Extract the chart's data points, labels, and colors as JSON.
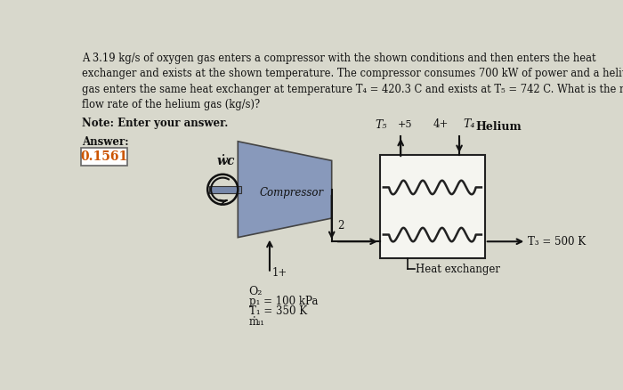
{
  "background_color": "#d8d8cc",
  "title_text": "A 3.19 kg/s of oxygen gas enters a compressor with the shown conditions and then enters the heat\nexchanger and exists at the shown temperature. The compressor consumes 700 kW of power and a helium\ngas enters the same heat exchanger at temperature T₄ = 420.3 C and exists at T₅ = 742 C. What is the mass\nflow rate of the helium gas (kg/s)?",
  "note_text": "Note: Enter your answer.",
  "answer_label": "Answer:",
  "answer_value": "0.1561",
  "helium_label": "Helium",
  "wc_label": "ẇc",
  "compressor_label": "Compressor",
  "o2_label": "O₂",
  "p1_label": "p₁ = 100 kPa",
  "t1_label": "T₁ = 350 K",
  "mdot1_label": "ṁᵢ₁",
  "t3_label": "T₃ = 500 K",
  "t5_label": "T₅",
  "t4_label": "T₄",
  "heat_exchanger_label": "Heat exchanger",
  "node1_label": "1",
  "node2_label": "2",
  "node4_label": "4",
  "node5_label": "5",
  "compressor_color": "#8899bb",
  "compressor_shaft_color": "#7788aa",
  "answer_box_color": "#ffffff",
  "arrow_color": "#111111",
  "line_color": "#111111"
}
